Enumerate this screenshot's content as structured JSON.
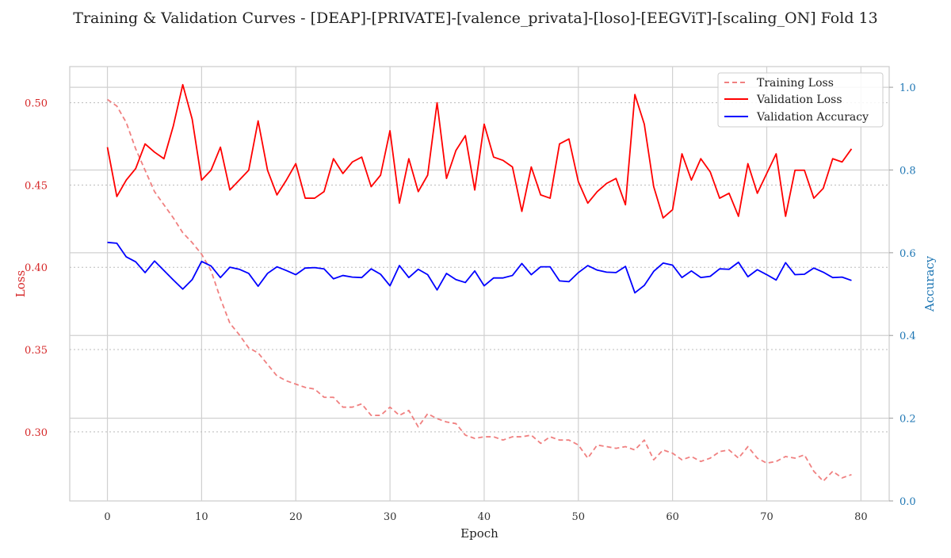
{
  "chart_data": {
    "type": "line",
    "title": "Training & Validation Curves - [DEAP]-[PRIVATE]-[valence_privata]-[loso]-[EEGViT]-[scaling_ON] Fold 13",
    "xlabel": "Epoch",
    "ylabel_left": "Loss",
    "ylabel_right": "Accuracy",
    "xlim": [
      -4,
      83
    ],
    "ylim_left": [
      0.258,
      0.522
    ],
    "ylim_right": [
      0.0,
      1.05
    ],
    "x_ticks": [
      0,
      10,
      20,
      30,
      40,
      50,
      60,
      70,
      80
    ],
    "y_ticks_left": [
      0.3,
      0.35,
      0.4,
      0.45,
      0.5
    ],
    "y_ticks_right": [
      0.0,
      0.2,
      0.4,
      0.6,
      0.8,
      1.0
    ],
    "grid": true,
    "legend_position": "top-right",
    "colors": {
      "training_loss": "#f08080",
      "validation_loss": "#ff0000",
      "validation_accuracy": "#0000ff",
      "left_axis": "#d62728",
      "right_axis": "#1f77b4"
    },
    "x": [
      0,
      1,
      2,
      3,
      4,
      5,
      6,
      7,
      8,
      9,
      10,
      11,
      12,
      13,
      14,
      15,
      16,
      17,
      18,
      19,
      20,
      21,
      22,
      23,
      24,
      25,
      26,
      27,
      28,
      29,
      30,
      31,
      32,
      33,
      34,
      35,
      36,
      37,
      38,
      39,
      40,
      41,
      42,
      43,
      44,
      45,
      46,
      47,
      48,
      49,
      50,
      51,
      52,
      53,
      54,
      55,
      56,
      57,
      58,
      59,
      60,
      61,
      62,
      63,
      64,
      65,
      66,
      67,
      68,
      69,
      70,
      71,
      72,
      73,
      74,
      75,
      76,
      77,
      78,
      79
    ],
    "series": [
      {
        "name": "Training Loss",
        "axis": "left",
        "style": "dashed",
        "values": [
          0.502,
          0.498,
          0.488,
          0.472,
          0.459,
          0.446,
          0.438,
          0.43,
          0.421,
          0.415,
          0.408,
          0.398,
          0.381,
          0.366,
          0.359,
          0.351,
          0.348,
          0.341,
          0.334,
          0.331,
          0.329,
          0.327,
          0.326,
          0.321,
          0.321,
          0.315,
          0.315,
          0.317,
          0.31,
          0.31,
          0.315,
          0.31,
          0.313,
          0.303,
          0.311,
          0.308,
          0.306,
          0.305,
          0.298,
          0.296,
          0.297,
          0.297,
          0.295,
          0.297,
          0.297,
          0.298,
          0.293,
          0.297,
          0.295,
          0.295,
          0.292,
          0.284,
          0.292,
          0.291,
          0.29,
          0.291,
          0.289,
          0.295,
          0.283,
          0.289,
          0.287,
          0.283,
          0.285,
          0.282,
          0.284,
          0.288,
          0.289,
          0.284,
          0.291,
          0.284,
          0.281,
          0.282,
          0.285,
          0.284,
          0.286,
          0.276,
          0.27,
          0.276,
          0.272,
          0.274
        ]
      },
      {
        "name": "Validation Loss",
        "axis": "left",
        "style": "solid",
        "values": [
          0.473,
          0.443,
          0.453,
          0.46,
          0.475,
          0.47,
          0.466,
          0.486,
          0.511,
          0.49,
          0.453,
          0.459,
          0.473,
          0.447,
          0.453,
          0.459,
          0.489,
          0.459,
          0.444,
          0.453,
          0.463,
          0.442,
          0.442,
          0.446,
          0.466,
          0.457,
          0.464,
          0.467,
          0.449,
          0.456,
          0.483,
          0.439,
          0.466,
          0.446,
          0.456,
          0.5,
          0.454,
          0.471,
          0.48,
          0.447,
          0.487,
          0.467,
          0.465,
          0.461,
          0.434,
          0.461,
          0.444,
          0.442,
          0.475,
          0.478,
          0.452,
          0.439,
          0.446,
          0.451,
          0.454,
          0.438,
          0.505,
          0.487,
          0.449,
          0.43,
          0.435,
          0.469,
          0.453,
          0.466,
          0.458,
          0.442,
          0.445,
          0.431,
          0.463,
          0.445,
          0.457,
          0.469,
          0.431,
          0.459,
          0.459,
          0.442,
          0.448,
          0.466,
          0.464,
          0.472
        ]
      },
      {
        "name": "Validation Accuracy",
        "axis": "right",
        "style": "solid",
        "values": [
          0.625,
          0.623,
          0.59,
          0.578,
          0.552,
          0.58,
          0.557,
          0.534,
          0.512,
          0.535,
          0.579,
          0.568,
          0.54,
          0.565,
          0.56,
          0.55,
          0.519,
          0.55,
          0.566,
          0.557,
          0.547,
          0.563,
          0.564,
          0.561,
          0.537,
          0.545,
          0.541,
          0.54,
          0.561,
          0.548,
          0.52,
          0.569,
          0.54,
          0.56,
          0.547,
          0.51,
          0.55,
          0.535,
          0.528,
          0.556,
          0.52,
          0.539,
          0.539,
          0.545,
          0.574,
          0.547,
          0.566,
          0.566,
          0.532,
          0.53,
          0.552,
          0.569,
          0.558,
          0.553,
          0.552,
          0.567,
          0.503,
          0.521,
          0.555,
          0.575,
          0.57,
          0.54,
          0.556,
          0.54,
          0.543,
          0.561,
          0.56,
          0.577,
          0.542,
          0.559,
          0.547,
          0.534,
          0.576,
          0.547,
          0.548,
          0.563,
          0.553,
          0.54,
          0.541,
          0.533
        ]
      }
    ]
  }
}
